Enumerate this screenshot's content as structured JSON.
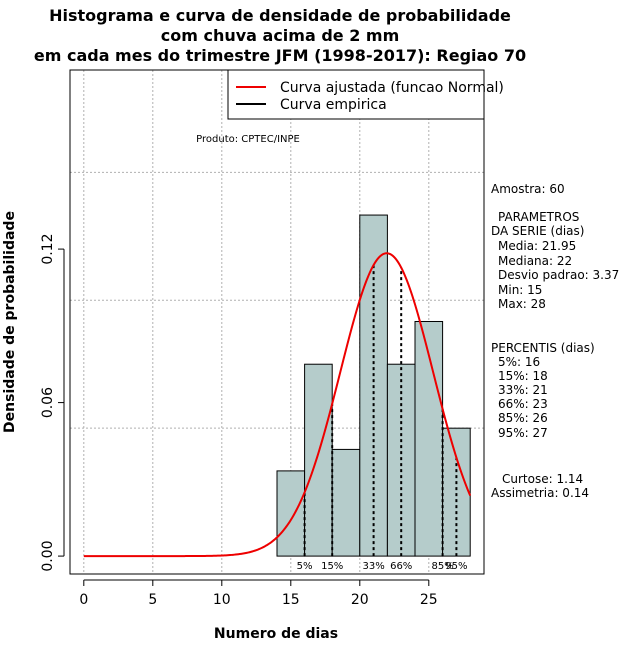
{
  "titles": {
    "line1": "Histograma e curva de densidade de probabilidade",
    "line2": "com chuva acima de 2 mm",
    "line3": "em cada mes do trimestre JFM (1998-2017): Regiao 70"
  },
  "product_label": "Produto: CPTEC/INPE",
  "stats": {
    "amostra": "Amostra: 60",
    "params_header_1": "PARAMETROS",
    "params_header_2": "DA SERIE (dias)",
    "media": "Media: 21.95",
    "mediana": "Mediana: 22",
    "desvio": "Desvio padrao: 3.37",
    "min": "Min: 15",
    "max": "Max: 28",
    "percentis_header": "PERCENTIS (dias)",
    "p5": "5%: 16",
    "p15": "15%: 18",
    "p33": "33%: 21",
    "p66": "66%: 23",
    "p85": "85%: 26",
    "p95": "95%: 27",
    "curtose": "Curtose: 1.14",
    "assimetria": "Assimetria: 0.14"
  },
  "colors": {
    "bar_fill": "#b5cccb",
    "fit_curve": "#ee0000",
    "empirical": "#000000",
    "grid": "#b0b0b0"
  },
  "chart_data": {
    "type": "bar",
    "title": "Histograma e curva de densidade de probabilidade com chuva acima de 2 mm em cada mes do trimestre JFM (1998-2017): Regiao 70",
    "xlabel": "Numero de dias",
    "ylabel": "Densidade de probabilidade",
    "xlim": [
      -1,
      29
    ],
    "ylim": [
      -0.007,
      0.19
    ],
    "xticks": [
      0,
      5,
      10,
      15,
      20,
      25
    ],
    "yticks": [
      0.0,
      0.06,
      0.12
    ],
    "ytick_labels": [
      "0.00",
      "0.06",
      "0.12"
    ],
    "x_gridlines": [
      0,
      5,
      10,
      15,
      20,
      25
    ],
    "y_gridlines": [
      0.05,
      0.1,
      0.15
    ],
    "bins": [
      {
        "x0": 14,
        "x1": 16,
        "density": 0.0333
      },
      {
        "x0": 16,
        "x1": 18,
        "density": 0.075
      },
      {
        "x0": 18,
        "x1": 20,
        "density": 0.0417
      },
      {
        "x0": 20,
        "x1": 22,
        "density": 0.1333
      },
      {
        "x0": 22,
        "x1": 24,
        "density": 0.075
      },
      {
        "x0": 24,
        "x1": 26,
        "density": 0.0917
      },
      {
        "x0": 26,
        "x1": 28,
        "density": 0.05
      }
    ],
    "normal_fit": {
      "mean": 21.95,
      "sd": 3.37,
      "x_range": [
        0,
        28
      ]
    },
    "percentile_lines": [
      {
        "label": "5%",
        "x": 16
      },
      {
        "label": "15%",
        "x": 18
      },
      {
        "label": "33%",
        "x": 21
      },
      {
        "label": "66%",
        "x": 23
      },
      {
        "label": "85%",
        "x": 26
      },
      {
        "label": "95%",
        "x": 27
      }
    ],
    "legend": {
      "position": "top-right",
      "entries": [
        {
          "label": "Curva ajustada (funcao Normal)",
          "color": "#ee0000"
        },
        {
          "label": "Curva empirica",
          "color": "#000000"
        }
      ]
    }
  }
}
